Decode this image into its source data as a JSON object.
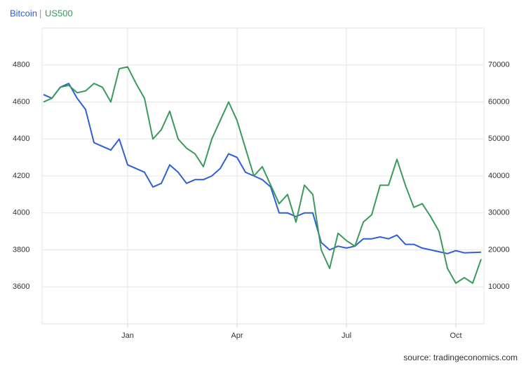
{
  "chart_data": {
    "type": "line",
    "legend_separator": "|",
    "source": "source: tradingeconomics.com",
    "categories": [
      null,
      null,
      null,
      null,
      null,
      null,
      null,
      null,
      null,
      null,
      "Jan",
      null,
      null,
      null,
      null,
      null,
      null,
      null,
      null,
      null,
      null,
      null,
      null,
      "Apr",
      null,
      null,
      null,
      null,
      null,
      null,
      null,
      null,
      null,
      null,
      null,
      null,
      "Jul",
      null,
      null,
      null,
      null,
      null,
      null,
      null,
      null,
      null,
      null,
      null,
      null,
      "Oct",
      null,
      null,
      null
    ],
    "ylim": [
      3400,
      5000
    ],
    "yticks": [
      3600,
      3800,
      4000,
      4200,
      4400,
      4600,
      4800
    ],
    "y2lim": [
      0,
      80000
    ],
    "y2ticks": [
      10000,
      20000,
      30000,
      40000,
      50000,
      60000,
      70000
    ],
    "grid": true,
    "series": [
      {
        "name": "Bitcoin",
        "color": "#2f5fd6",
        "axis": "y2",
        "values": [
          62000,
          61000,
          64000,
          65000,
          61000,
          58000,
          49000,
          48000,
          47000,
          50000,
          43000,
          42000,
          41000,
          37000,
          38000,
          43000,
          41000,
          38000,
          39000,
          39000,
          40000,
          42000,
          46000,
          45000,
          41000,
          40000,
          39000,
          37000,
          30000,
          30000,
          29000,
          30000,
          30000,
          22000,
          20000,
          21000,
          20500,
          21000,
          23000,
          23000,
          23500,
          23000,
          24000,
          21500,
          21500,
          20500,
          20000,
          19500,
          19000,
          19800,
          19200,
          19300,
          19400
        ]
      },
      {
        "name": "US500",
        "color": "#3a9a5b",
        "values": [
          4600,
          4620,
          4680,
          4690,
          4650,
          4660,
          4700,
          4680,
          4600,
          4780,
          4790,
          4700,
          4620,
          4400,
          4450,
          4550,
          4400,
          4350,
          4320,
          4250,
          4400,
          4500,
          4600,
          4500,
          4350,
          4200,
          4250,
          4150,
          4050,
          4100,
          3950,
          4150,
          4100,
          3800,
          3700,
          3890,
          3850,
          3820,
          3950,
          3990,
          4150,
          4150,
          4290,
          4150,
          4030,
          4050,
          3980,
          3900,
          3700,
          3620,
          3650,
          3620,
          3750
        ]
      }
    ]
  }
}
